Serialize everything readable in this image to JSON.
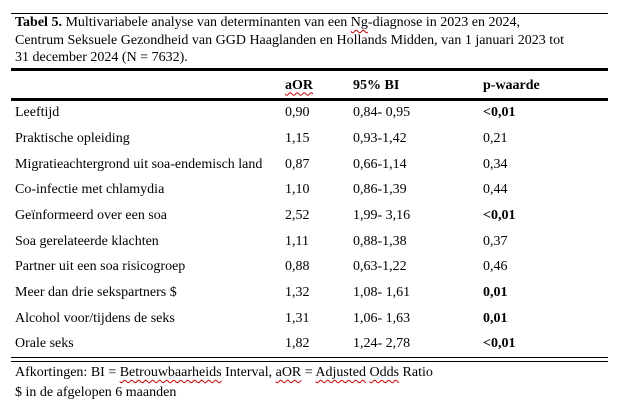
{
  "document": {
    "title": {
      "label_bold": "Tabel 5.",
      "text_before_misspelled": " Multivariabele analyse van determinanten van een ",
      "misspelled_word": "Ng",
      "text_after_misspelled": "-diagnose in 2023 en 2024,",
      "line2": "Centrum Seksuele Gezondheid van GGD Haaglanden en Hollands Midden, van 1 januari 2023 tot",
      "line3": "31 december 2024 (N = 7632)."
    }
  },
  "table": {
    "columns": {
      "aor": "aOR",
      "bi": "95% BI",
      "p": "p-waarde"
    },
    "rows": [
      {
        "label": "Leeftijd",
        "aor": "0,90",
        "bi": "0,84- 0,95",
        "p": "<0,01",
        "p_bold": true
      },
      {
        "label": "Praktische opleiding",
        "aor": "1,15",
        "bi": "0,93-1,42",
        "p": "0,21",
        "p_bold": false
      },
      {
        "label": "Migratieachtergrond uit soa-endemisch land",
        "aor": "0,87",
        "bi": "0,66-1,14",
        "p": "0,34",
        "p_bold": false
      },
      {
        "label": "Co-infectie met chlamydia",
        "aor": "1,10",
        "bi": "0,86-1,39",
        "p": "0,44",
        "p_bold": false
      },
      {
        "label": "Geïnformeerd over een soa",
        "aor": "2,52",
        "bi": "1,99- 3,16",
        "p": "<0,01",
        "p_bold": true
      },
      {
        "label": "Soa gerelateerde klachten",
        "aor": "1,11",
        "bi": "0,88-1,38",
        "p": "0,37",
        "p_bold": false
      },
      {
        "label": "Partner uit een soa risicogroep",
        "aor": "0,88",
        "bi": "0,63-1,22",
        "p": "0,46",
        "p_bold": false
      },
      {
        "label": "Meer dan drie sekspartners $",
        "aor": "1,32",
        "bi": "1,08- 1,61",
        "p": "0,01",
        "p_bold": true
      },
      {
        "label": "Alcohol voor/tijdens de seks",
        "aor": "1,31",
        "bi": "1,06- 1,63",
        "p": "0,01",
        "p_bold": true
      },
      {
        "label": "Orale seks",
        "aor": "1,82",
        "bi": "1,24- 2,78",
        "p": "<0,01",
        "p_bold": true
      }
    ]
  },
  "footnotes": {
    "line1_parts": [
      {
        "text": "Afkortingen: BI = ",
        "squiggle": false
      },
      {
        "text": "Betrouwbaarheids",
        "squiggle": true
      },
      {
        "text": " Interval, ",
        "squiggle": false
      },
      {
        "text": "aOR",
        "squiggle": true
      },
      {
        "text": " = ",
        "squiggle": false
      },
      {
        "text": "Adjusted",
        "squiggle": true
      },
      {
        "text": " ",
        "squiggle": false
      },
      {
        "text": "Odds",
        "squiggle": true
      },
      {
        "text": " Ratio",
        "squiggle": false
      }
    ],
    "line2": "$ in de afgelopen 6 maanden"
  },
  "colors": {
    "text": "#000000",
    "background": "#ffffff",
    "spellcheck_underline": "#cc0000"
  }
}
